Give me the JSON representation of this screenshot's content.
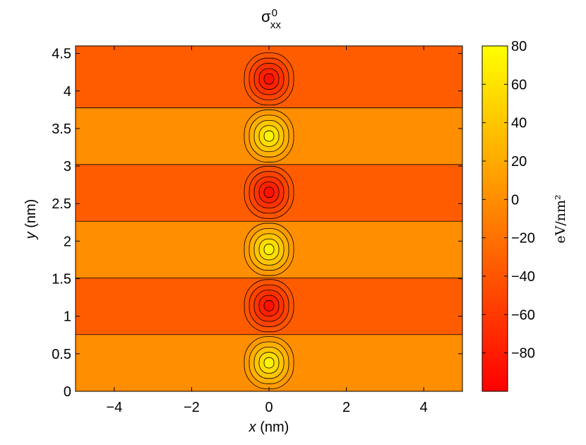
{
  "chart_data": {
    "type": "heatmap",
    "title": {
      "symbol": "σ",
      "superscript": "0",
      "subscript": "xx"
    },
    "xlabel": {
      "var": "x",
      "unit": " (nm)"
    },
    "ylabel": {
      "var": "y",
      "unit": " (nm)"
    },
    "xlim": [
      -5,
      5
    ],
    "ylim": [
      0,
      4.6
    ],
    "x_ticks": [
      -4,
      -2,
      0,
      2,
      4
    ],
    "x_tick_labels": [
      "−4",
      "−2",
      "0",
      "2",
      "4"
    ],
    "y_ticks": [
      0,
      0.5,
      1,
      1.5,
      2,
      2.5,
      3,
      3.5,
      4,
      4.5
    ],
    "y_tick_labels": [
      "0",
      "0.5",
      "1",
      "1.5",
      "2",
      "2.5",
      "3",
      "3.5",
      "4",
      "4.5"
    ],
    "bands": [
      {
        "y_range": [
          0,
          0.755
        ],
        "value": 0,
        "center": [
          0,
          0.38
        ],
        "peak": 80
      },
      {
        "y_range": [
          0.755,
          1.51
        ],
        "value": -35,
        "center": [
          0,
          1.14
        ],
        "peak": -95
      },
      {
        "y_range": [
          1.51,
          2.265
        ],
        "value": 0,
        "center": [
          0,
          1.89
        ],
        "peak": 80
      },
      {
        "y_range": [
          2.265,
          3.02
        ],
        "value": -35,
        "center": [
          0,
          2.65
        ],
        "peak": -95
      },
      {
        "y_range": [
          3.02,
          3.775
        ],
        "value": 0,
        "center": [
          0,
          3.4
        ],
        "peak": 80
      },
      {
        "y_range": [
          3.775,
          4.6
        ],
        "value": -35,
        "center": [
          0,
          4.16
        ],
        "peak": -95
      }
    ],
    "colorbar": {
      "colormap": "autumn",
      "range": [
        -100,
        80
      ],
      "ticks": [
        80,
        60,
        40,
        20,
        0,
        -20,
        -40,
        -60,
        -80
      ],
      "tick_labels": [
        "80",
        "60",
        "40",
        "20",
        "0",
        "−20",
        "−40",
        "−60",
        "−80"
      ],
      "label": "eV/nm²"
    },
    "grid": false,
    "legend": "none"
  }
}
